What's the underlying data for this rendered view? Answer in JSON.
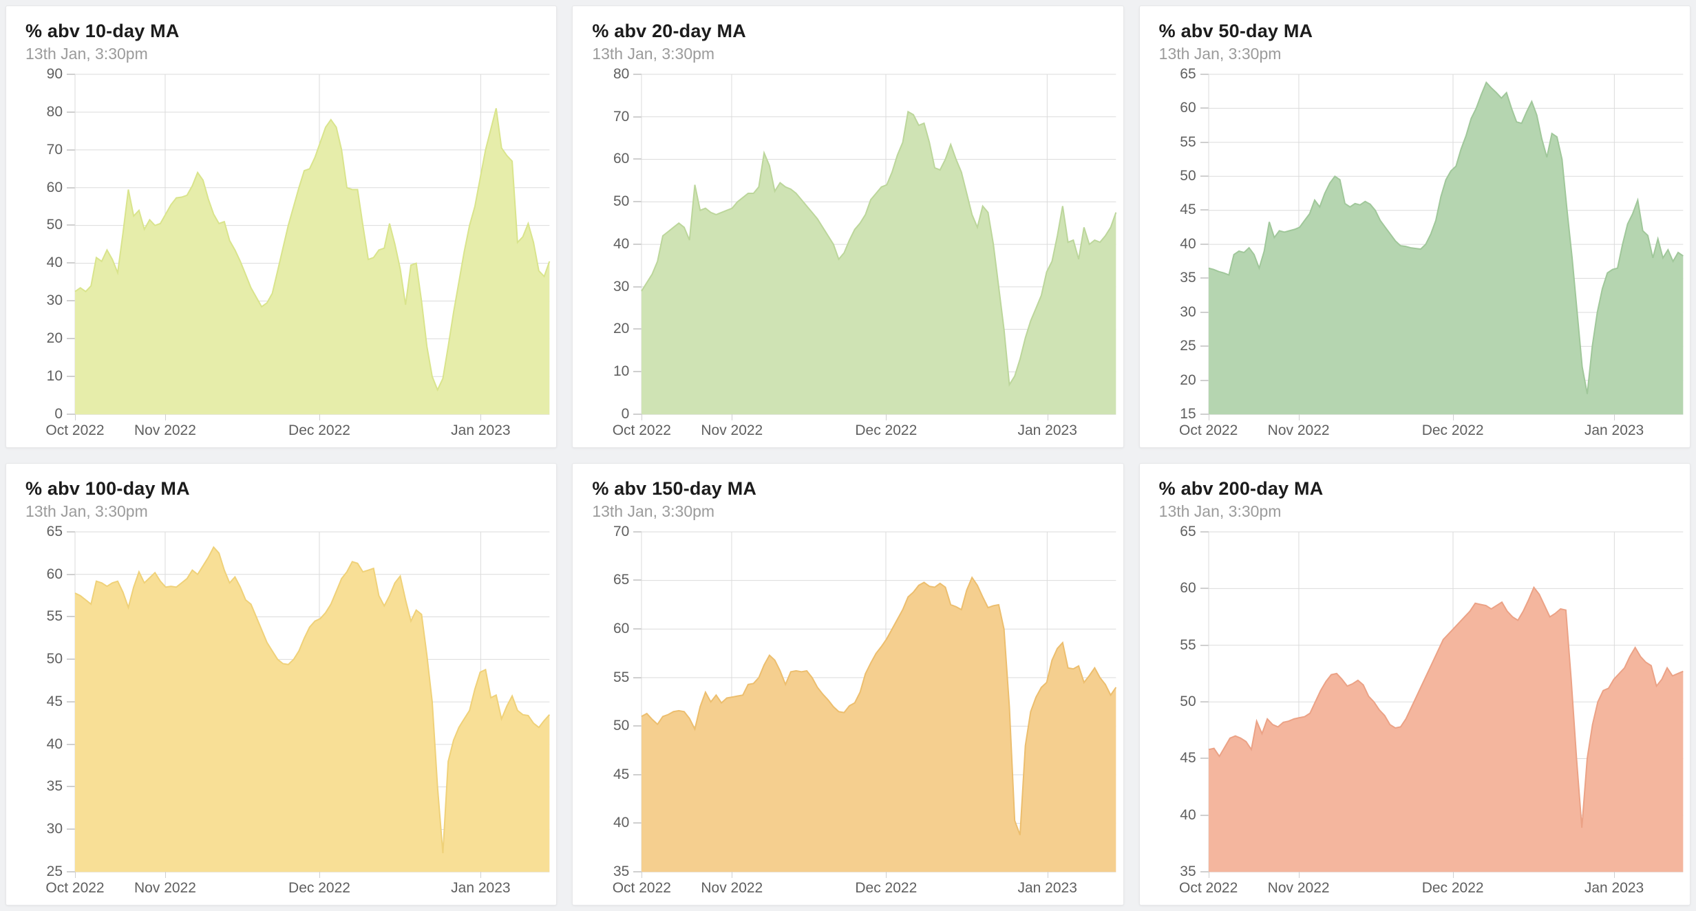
{
  "page": {
    "background_color": "#f0f1f3",
    "card_color": "#ffffff",
    "grid_color": "#dbdbdb",
    "axis_text_color": "#5f5f5f",
    "title_color": "#1c1c1c",
    "subtitle_color": "#9b9b9b"
  },
  "chart_data": [
    {
      "type": "area",
      "title": "% abv 10-day MA",
      "subtitle": "13th Jan, 3:30pm",
      "ylim": [
        0,
        90
      ],
      "y_ticks": [
        90,
        80,
        70,
        60,
        50,
        40,
        30,
        20,
        10,
        0
      ],
      "x_ticks": [
        {
          "label": "Oct 2022",
          "f": 0.0
        },
        {
          "label": "Nov 2022",
          "f": 0.19
        },
        {
          "label": "Dec 2022",
          "f": 0.515
        },
        {
          "label": "Jan 2023",
          "f": 0.855
        }
      ],
      "fill": "#e6edaa",
      "stroke": "#d9e48c",
      "values": [
        32.5,
        33.5,
        32.5,
        34,
        41.5,
        40.5,
        43.5,
        41,
        37.5,
        48,
        59.5,
        52.5,
        54,
        49,
        51.5,
        50,
        50.5,
        53,
        55.5,
        57.3,
        57.5,
        58,
        60.5,
        64,
        62,
        57,
        53,
        50.5,
        51,
        46,
        43.5,
        40.5,
        37,
        33.5,
        31,
        28.5,
        29.5,
        32,
        38,
        44,
        50,
        55,
        60,
        64.5,
        65,
        68,
        72,
        76,
        78,
        76,
        70,
        60,
        59.5,
        59.5,
        50,
        41,
        41.5,
        43.5,
        44,
        50.5,
        45,
        38.5,
        29,
        39.5,
        40,
        30,
        18,
        10,
        6.5,
        9.5,
        18,
        27,
        35,
        43,
        50,
        55,
        62.5,
        70,
        75.5,
        81,
        70.5,
        68.5,
        67,
        45.5,
        47,
        50.5,
        45.5,
        38,
        36.5,
        40.5
      ]
    },
    {
      "type": "area",
      "title": "% abv 20-day MA",
      "subtitle": "13th Jan, 3:30pm",
      "ylim": [
        0,
        80
      ],
      "y_ticks": [
        80,
        70,
        60,
        50,
        40,
        30,
        20,
        10,
        0
      ],
      "x_ticks": [
        {
          "label": "Oct 2022",
          "f": 0.0
        },
        {
          "label": "Nov 2022",
          "f": 0.19
        },
        {
          "label": "Dec 2022",
          "f": 0.515
        },
        {
          "label": "Jan 2023",
          "f": 0.855
        }
      ],
      "fill": "#cfe3b4",
      "stroke": "#bcd69b",
      "values": [
        29,
        31,
        33,
        36,
        42,
        43,
        44,
        45,
        44,
        41,
        54,
        48,
        48.5,
        47.5,
        47,
        47.5,
        48,
        48.5,
        50,
        51,
        52,
        52,
        53.5,
        61.5,
        58.5,
        52.5,
        54.5,
        53.5,
        53,
        52,
        50.5,
        49,
        47.5,
        46,
        44,
        42,
        40,
        36.5,
        38,
        41,
        43.5,
        45,
        47,
        50.5,
        52,
        53.5,
        54,
        57,
        61,
        64,
        71.2,
        70.5,
        68,
        68.5,
        64,
        58,
        57.5,
        60,
        63.5,
        60,
        57,
        52,
        47,
        44,
        49,
        47.5,
        40,
        30,
        20,
        7,
        9,
        13,
        18,
        22,
        25,
        28,
        33.5,
        36,
        42,
        49,
        40.5,
        41,
        36.5,
        44,
        40,
        41,
        40.5,
        42,
        44,
        47.5
      ]
    },
    {
      "type": "area",
      "title": "% abv 50-day MA",
      "subtitle": "13th Jan, 3:30pm",
      "ylim": [
        15,
        65
      ],
      "y_ticks": [
        65,
        60,
        55,
        50,
        45,
        40,
        35,
        30,
        25,
        20,
        15
      ],
      "x_ticks": [
        {
          "label": "Oct 2022",
          "f": 0.0
        },
        {
          "label": "Nov 2022",
          "f": 0.19
        },
        {
          "label": "Dec 2022",
          "f": 0.515
        },
        {
          "label": "Jan 2023",
          "f": 0.855
        }
      ],
      "fill": "#b5d5b0",
      "stroke": "#a0c79a",
      "values": [
        36.5,
        36.3,
        36,
        35.8,
        35.5,
        38.5,
        39,
        38.8,
        39.5,
        38.5,
        36.5,
        39,
        43.3,
        41,
        42,
        41.8,
        42,
        42.2,
        42.5,
        43.5,
        44.5,
        46.5,
        45.5,
        47.5,
        49,
        50,
        49.5,
        46,
        45.5,
        46,
        45.8,
        46.3,
        45.9,
        45,
        43.5,
        42.5,
        41.5,
        40.5,
        39.8,
        39.7,
        39.5,
        39.4,
        39.3,
        40,
        41.5,
        43.5,
        47,
        49.5,
        50.8,
        51.5,
        54,
        56,
        58.5,
        60,
        62,
        63.8,
        63,
        62.3,
        61.5,
        62.3,
        60,
        58,
        57.8,
        59.5,
        61,
        59,
        55.5,
        52.8,
        56.3,
        55.8,
        52.5,
        45,
        38,
        30,
        22,
        18,
        25,
        30,
        33.5,
        35.8,
        36.3,
        36.5,
        40,
        43,
        44.5,
        46.5,
        42,
        41.3,
        38,
        40.8,
        38,
        39.2,
        37.5,
        38.8,
        38.3
      ]
    },
    {
      "type": "area",
      "title": "% abv 100-day MA",
      "subtitle": "13th Jan, 3:30pm",
      "ylim": [
        25,
        65
      ],
      "y_ticks": [
        65,
        60,
        55,
        50,
        45,
        40,
        35,
        30,
        25
      ],
      "x_ticks": [
        {
          "label": "Oct 2022",
          "f": 0.0
        },
        {
          "label": "Nov 2022",
          "f": 0.19
        },
        {
          "label": "Dec 2022",
          "f": 0.515
        },
        {
          "label": "Jan 2023",
          "f": 0.855
        }
      ],
      "fill": "#f8df96",
      "stroke": "#efd179",
      "values": [
        57.8,
        57.5,
        57,
        56.5,
        59.2,
        59,
        58.6,
        59,
        59.2,
        57.9,
        56.1,
        58.5,
        60.3,
        59,
        59.6,
        60.2,
        59.2,
        58.5,
        58.6,
        58.5,
        59,
        59.5,
        60.5,
        60,
        61,
        62,
        63.2,
        62.5,
        60.5,
        59,
        59.7,
        58.5,
        57,
        56.5,
        55,
        53.5,
        52,
        51,
        50,
        49.5,
        49.4,
        50,
        51,
        52.5,
        53.8,
        54.5,
        54.8,
        55.5,
        56.5,
        58,
        59.5,
        60.3,
        61.5,
        61.3,
        60.3,
        60.5,
        60.7,
        57.5,
        56.3,
        57.5,
        59,
        59.8,
        57,
        54.5,
        55.8,
        55.3,
        50.5,
        45,
        35,
        27.2,
        38,
        40.5,
        42,
        43,
        44,
        46.5,
        48.5,
        48.8,
        45.5,
        45.8,
        43,
        44.5,
        45.7,
        44,
        43.5,
        43.4,
        42.5,
        42,
        42.8,
        43.5
      ]
    },
    {
      "type": "area",
      "title": "% abv 150-day MA",
      "subtitle": "13th Jan, 3:30pm",
      "ylim": [
        35,
        70
      ],
      "y_ticks": [
        70,
        65,
        60,
        55,
        50,
        45,
        40,
        35
      ],
      "x_ticks": [
        {
          "label": "Oct 2022",
          "f": 0.0
        },
        {
          "label": "Nov 2022",
          "f": 0.19
        },
        {
          "label": "Dec 2022",
          "f": 0.515
        },
        {
          "label": "Jan 2023",
          "f": 0.855
        }
      ],
      "fill": "#f5cf8f",
      "stroke": "#ecbe6e",
      "values": [
        51,
        51.3,
        50.7,
        50.2,
        51,
        51.2,
        51.5,
        51.6,
        51.5,
        50.8,
        49.7,
        52,
        53.5,
        52.5,
        53.2,
        52.4,
        52.9,
        53,
        53.1,
        53.2,
        54.3,
        54.4,
        55,
        56.3,
        57.3,
        56.8,
        55.7,
        54.3,
        55.6,
        55.7,
        55.6,
        55.7,
        55,
        54,
        53.3,
        52.7,
        52,
        51.5,
        51.4,
        52.1,
        52.4,
        53.5,
        55.4,
        56.5,
        57.5,
        58.2,
        59,
        60,
        61,
        62,
        63.3,
        63.8,
        64.5,
        64.8,
        64.4,
        64.3,
        64.7,
        64.3,
        62.5,
        62.3,
        62,
        64,
        65.3,
        64.5,
        63.3,
        62.2,
        62.4,
        62.5,
        60,
        52,
        40.3,
        38.8,
        48,
        51.5,
        53,
        54,
        54.5,
        56.8,
        58,
        58.6,
        56,
        55.9,
        56.2,
        54.5,
        55.2,
        56,
        55,
        54.3,
        53.2,
        54
      ]
    },
    {
      "type": "area",
      "title": "% abv 200-day MA",
      "subtitle": "13th Jan, 3:30pm",
      "ylim": [
        35,
        65
      ],
      "y_ticks": [
        65,
        60,
        55,
        50,
        45,
        40,
        35
      ],
      "x_ticks": [
        {
          "label": "Oct 2022",
          "f": 0.0
        },
        {
          "label": "Nov 2022",
          "f": 0.19
        },
        {
          "label": "Dec 2022",
          "f": 0.515
        },
        {
          "label": "Jan 2023",
          "f": 0.855
        }
      ],
      "fill": "#f4b69e",
      "stroke": "#eba286",
      "values": [
        45.8,
        45.9,
        45.2,
        46,
        46.8,
        47,
        46.8,
        46.5,
        45.8,
        48.3,
        47.2,
        48.5,
        48,
        47.8,
        48.2,
        48.3,
        48.5,
        48.6,
        48.7,
        49,
        50,
        51,
        51.8,
        52.4,
        52.5,
        52,
        51.4,
        51.6,
        51.9,
        51.5,
        50.5,
        50,
        49.3,
        48.8,
        48,
        47.7,
        47.8,
        48.5,
        49.5,
        50.5,
        51.5,
        52.5,
        53.5,
        54.5,
        55.5,
        56,
        56.5,
        57,
        57.5,
        58,
        58.7,
        58.6,
        58.5,
        58.2,
        58.5,
        58.8,
        58,
        57.5,
        57.2,
        58,
        59,
        60.1,
        59.5,
        58.5,
        57.5,
        57.8,
        58.2,
        58.1,
        52,
        45,
        38.9,
        45,
        48,
        50,
        51,
        51.2,
        52,
        52.5,
        53,
        54,
        54.8,
        54,
        53.5,
        53.2,
        51.4,
        52,
        53,
        52.3,
        52.5,
        52.7
      ]
    }
  ]
}
